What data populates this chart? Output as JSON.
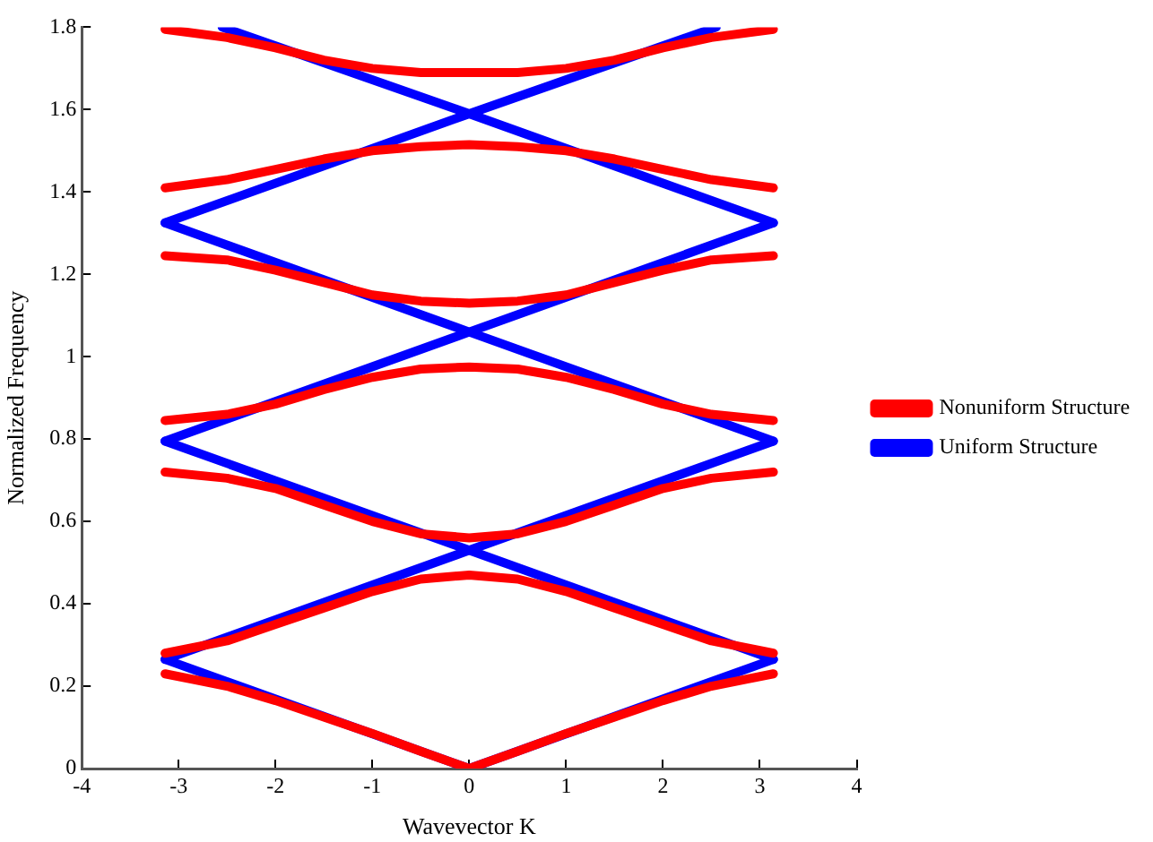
{
  "chart_data": {
    "type": "line",
    "xlabel": "Wavevector K",
    "ylabel": "Normalized Frequency",
    "xlim": [
      -4,
      4
    ],
    "xticks": [
      -4,
      -3,
      -2,
      -1,
      0,
      1,
      2,
      3,
      4
    ],
    "ylim": [
      0,
      1.8
    ],
    "yticks": [
      0,
      0.2,
      0.4,
      0.6,
      0.8,
      1,
      1.2,
      1.4,
      1.6,
      1.8
    ],
    "grid": false,
    "legend": "right",
    "marker": "none",
    "line_style": "solid",
    "series": [
      {
        "name": "Nonuniform Structure",
        "color": "#ff0000",
        "x": [
          -3.14,
          -2.5,
          -2,
          -1.5,
          -1,
          -0.5,
          0,
          0.5,
          1,
          1.5,
          2,
          2.5,
          3.14
        ],
        "values": [
          0.23,
          0.2,
          0.165,
          0.125,
          0.085,
          0.042,
          0,
          0.042,
          0.085,
          0.125,
          0.165,
          0.2,
          0.23
        ]
      },
      {
        "color": "#ff0000",
        "x": [
          -3.14,
          -2.5,
          -2,
          -1.5,
          -1,
          -0.5,
          0,
          0.5,
          1,
          1.5,
          2,
          2.5,
          3.14
        ],
        "values": [
          0.28,
          0.31,
          0.35,
          0.39,
          0.43,
          0.46,
          0.47,
          0.46,
          0.43,
          0.39,
          0.35,
          0.31,
          0.28
        ]
      },
      {
        "color": "#ff0000",
        "x": [
          -3.14,
          -2.5,
          -2,
          -1.5,
          -1,
          -0.5,
          0,
          0.5,
          1,
          1.5,
          2,
          2.5,
          3.14
        ],
        "values": [
          0.72,
          0.705,
          0.68,
          0.64,
          0.6,
          0.57,
          0.56,
          0.57,
          0.6,
          0.64,
          0.68,
          0.705,
          0.72
        ]
      },
      {
        "color": "#ff0000",
        "x": [
          -3.14,
          -2.5,
          -2,
          -1.5,
          -1,
          -0.5,
          0,
          0.5,
          1,
          1.5,
          2,
          2.5,
          3.14
        ],
        "values": [
          0.845,
          0.86,
          0.885,
          0.92,
          0.95,
          0.97,
          0.975,
          0.97,
          0.95,
          0.92,
          0.885,
          0.86,
          0.845
        ]
      },
      {
        "color": "#ff0000",
        "x": [
          -3.14,
          -2.5,
          -2,
          -1.5,
          -1,
          -0.5,
          0,
          0.5,
          1,
          1.5,
          2,
          2.5,
          3.14
        ],
        "values": [
          1.245,
          1.235,
          1.21,
          1.18,
          1.15,
          1.135,
          1.13,
          1.135,
          1.15,
          1.18,
          1.21,
          1.235,
          1.245
        ]
      },
      {
        "color": "#ff0000",
        "x": [
          -3.14,
          -2.5,
          -2,
          -1.5,
          -1,
          -0.5,
          0,
          0.5,
          1,
          1.5,
          2,
          2.5,
          3.14
        ],
        "values": [
          1.41,
          1.43,
          1.455,
          1.48,
          1.5,
          1.51,
          1.515,
          1.51,
          1.5,
          1.48,
          1.455,
          1.43,
          1.41
        ]
      },
      {
        "color": "#ff0000",
        "x": [
          -3.14,
          -2.5,
          -2,
          -1.5,
          -1,
          -0.5,
          0,
          0.5,
          1,
          1.5,
          2,
          2.5,
          3.14
        ],
        "values": [
          1.795,
          1.775,
          1.75,
          1.72,
          1.7,
          1.69,
          1.69,
          1.69,
          1.7,
          1.72,
          1.75,
          1.775,
          1.795
        ]
      },
      {
        "name": "Uniform Structure",
        "color": "#0000ff",
        "x": [
          -3.14,
          0,
          3.14
        ],
        "values": [
          0.265,
          0,
          0.265
        ]
      },
      {
        "color": "#0000ff",
        "x": [
          -3.14,
          0,
          3.14
        ],
        "values": [
          0.265,
          0.53,
          0.265
        ]
      },
      {
        "color": "#0000ff",
        "x": [
          -3.14,
          0,
          3.14
        ],
        "values": [
          0.795,
          0.53,
          0.795
        ]
      },
      {
        "color": "#0000ff",
        "x": [
          -3.14,
          0,
          3.14
        ],
        "values": [
          0.795,
          1.06,
          0.795
        ]
      },
      {
        "color": "#0000ff",
        "x": [
          -3.14,
          0,
          3.14
        ],
        "values": [
          1.325,
          1.06,
          1.325
        ]
      },
      {
        "color": "#0000ff",
        "x": [
          -3.14,
          0,
          3.14
        ],
        "values": [
          1.325,
          1.59,
          1.325
        ]
      },
      {
        "color": "#0000ff",
        "x": [
          -2.55,
          0,
          2.55
        ],
        "values": [
          1.8,
          1.59,
          1.8
        ]
      }
    ]
  }
}
